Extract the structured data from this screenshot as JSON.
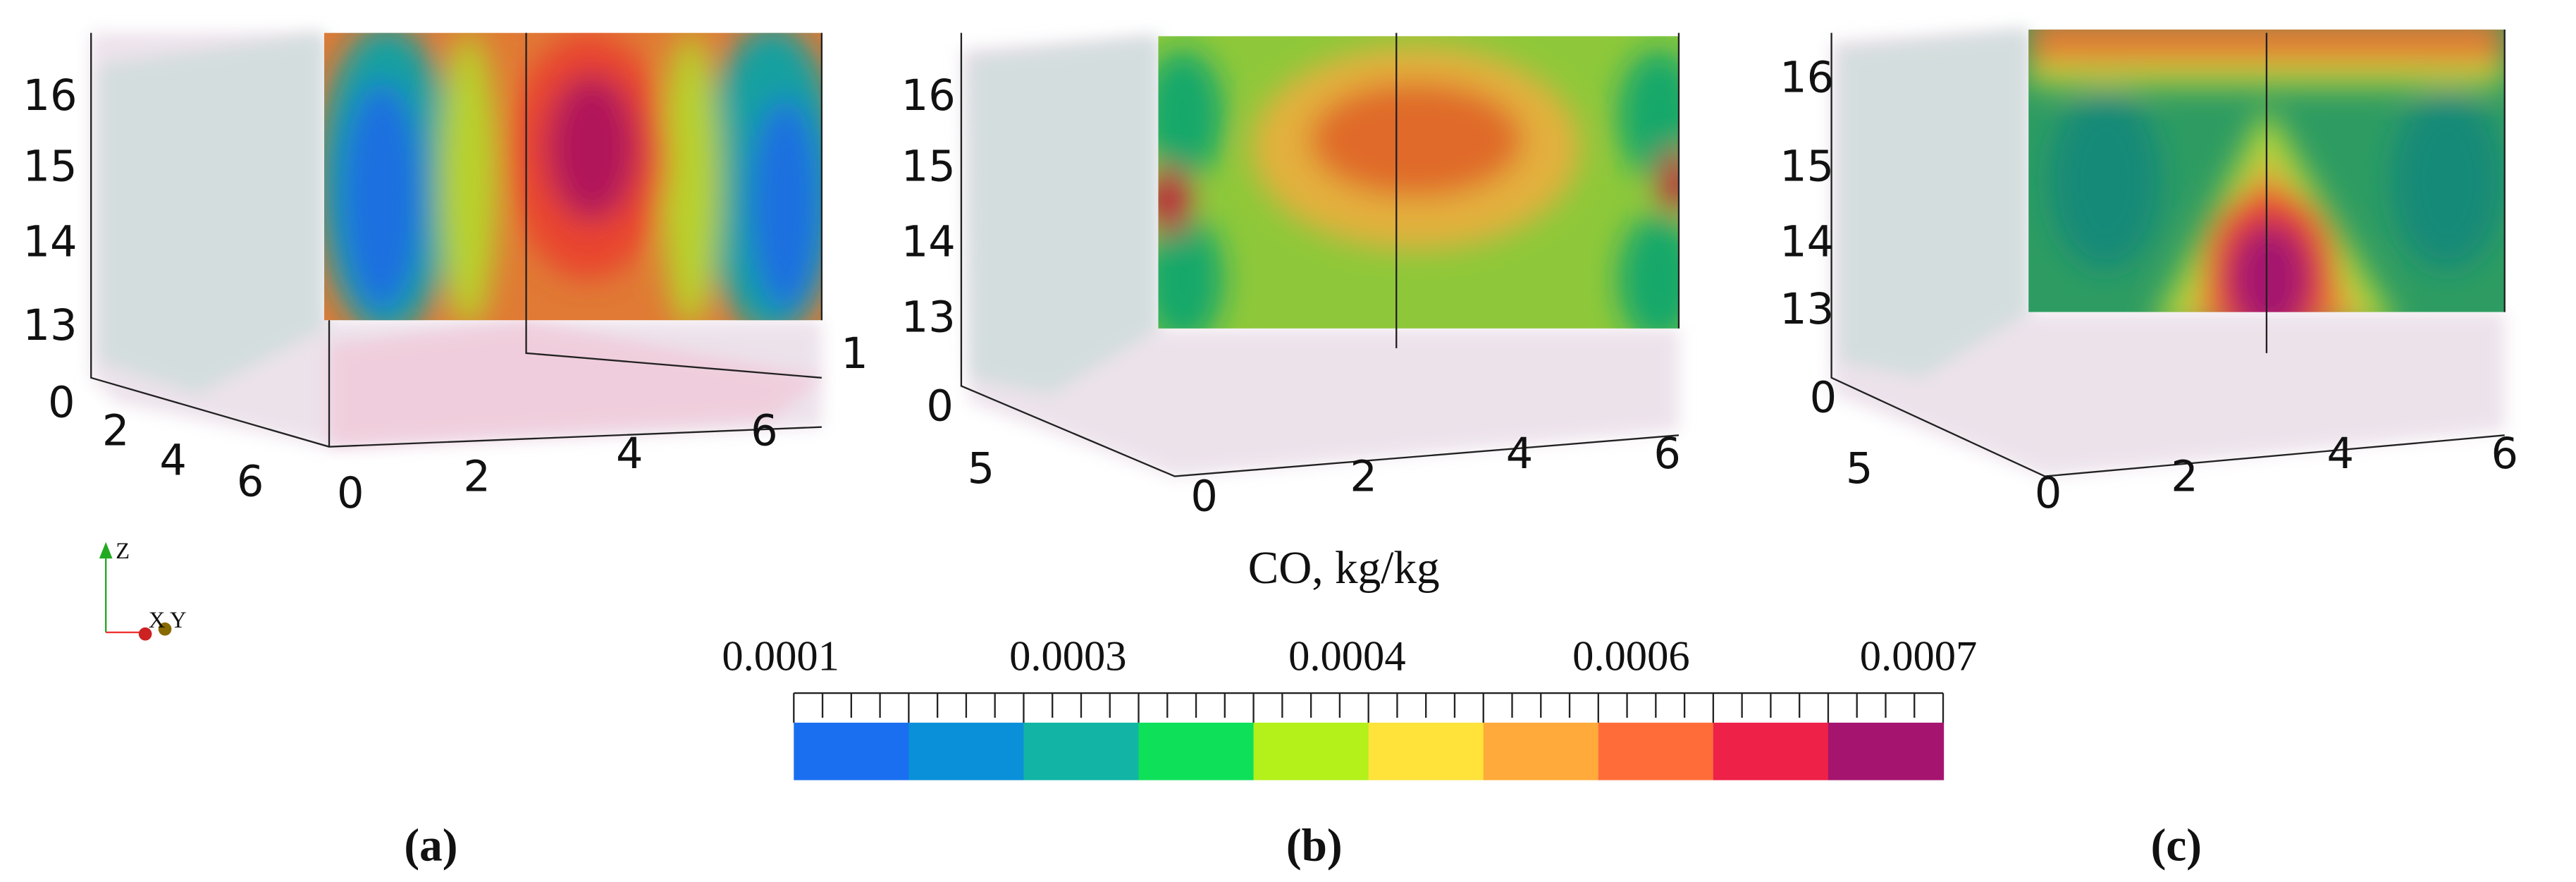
{
  "panels": [
    {
      "label": "(a)",
      "z_ticks": [
        "13",
        "14",
        "15",
        "16"
      ],
      "depth_ticks": [
        "0",
        "2",
        "4",
        "6"
      ],
      "x_ticks": [
        "0",
        "2",
        "4",
        "6"
      ],
      "side_tick": "1"
    },
    {
      "label": "(b)",
      "z_ticks": [
        "13",
        "14",
        "15",
        "16"
      ],
      "depth_ticks": [
        "0",
        "5"
      ],
      "x_ticks": [
        "0",
        "2",
        "4",
        "6"
      ]
    },
    {
      "label": "(c)",
      "z_ticks": [
        "13",
        "14",
        "15",
        "16"
      ],
      "depth_ticks": [
        "0",
        "5"
      ],
      "x_ticks": [
        "0",
        "2",
        "4",
        "6"
      ]
    }
  ],
  "triad": {
    "z": "Z",
    "x": "X",
    "y": "Y"
  },
  "colorbar": {
    "title": "CO, kg/kg",
    "tick_labels": [
      "0.0001",
      "0.0003",
      "0.0004",
      "0.0006",
      "0.0007"
    ],
    "colors": [
      "#1a6ff0",
      "#0a90d8",
      "#12b4a5",
      "#0ee05a",
      "#b4f01a",
      "#ffe23a",
      "#ffaa3a",
      "#ff6c3a",
      "#ee2148",
      "#a5146e"
    ]
  }
}
